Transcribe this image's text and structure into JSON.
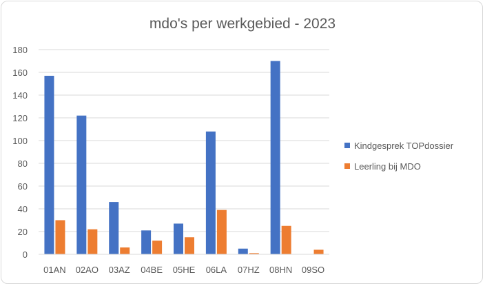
{
  "chart_data": {
    "type": "bar",
    "title": "mdo's per werkgebied - 2023",
    "xlabel": "",
    "ylabel": "",
    "categories": [
      "01AN",
      "02AO",
      "03AZ",
      "04BE",
      "05HE",
      "06LA",
      "07HZ",
      "08HN",
      "09SO"
    ],
    "series": [
      {
        "name": "Kindgesprek TOPdossier",
        "color": "#4472c4",
        "values": [
          157,
          122,
          46,
          21,
          27,
          108,
          5,
          170,
          0
        ]
      },
      {
        "name": "Leerling bij MDO",
        "color": "#ed7d31",
        "values": [
          30,
          22,
          6,
          12,
          15,
          39,
          1,
          25,
          4
        ]
      }
    ],
    "ylim": [
      0,
      180
    ],
    "yticks": [
      0,
      20,
      40,
      60,
      80,
      100,
      120,
      140,
      160,
      180
    ],
    "grid": true,
    "legend_position": "right"
  }
}
